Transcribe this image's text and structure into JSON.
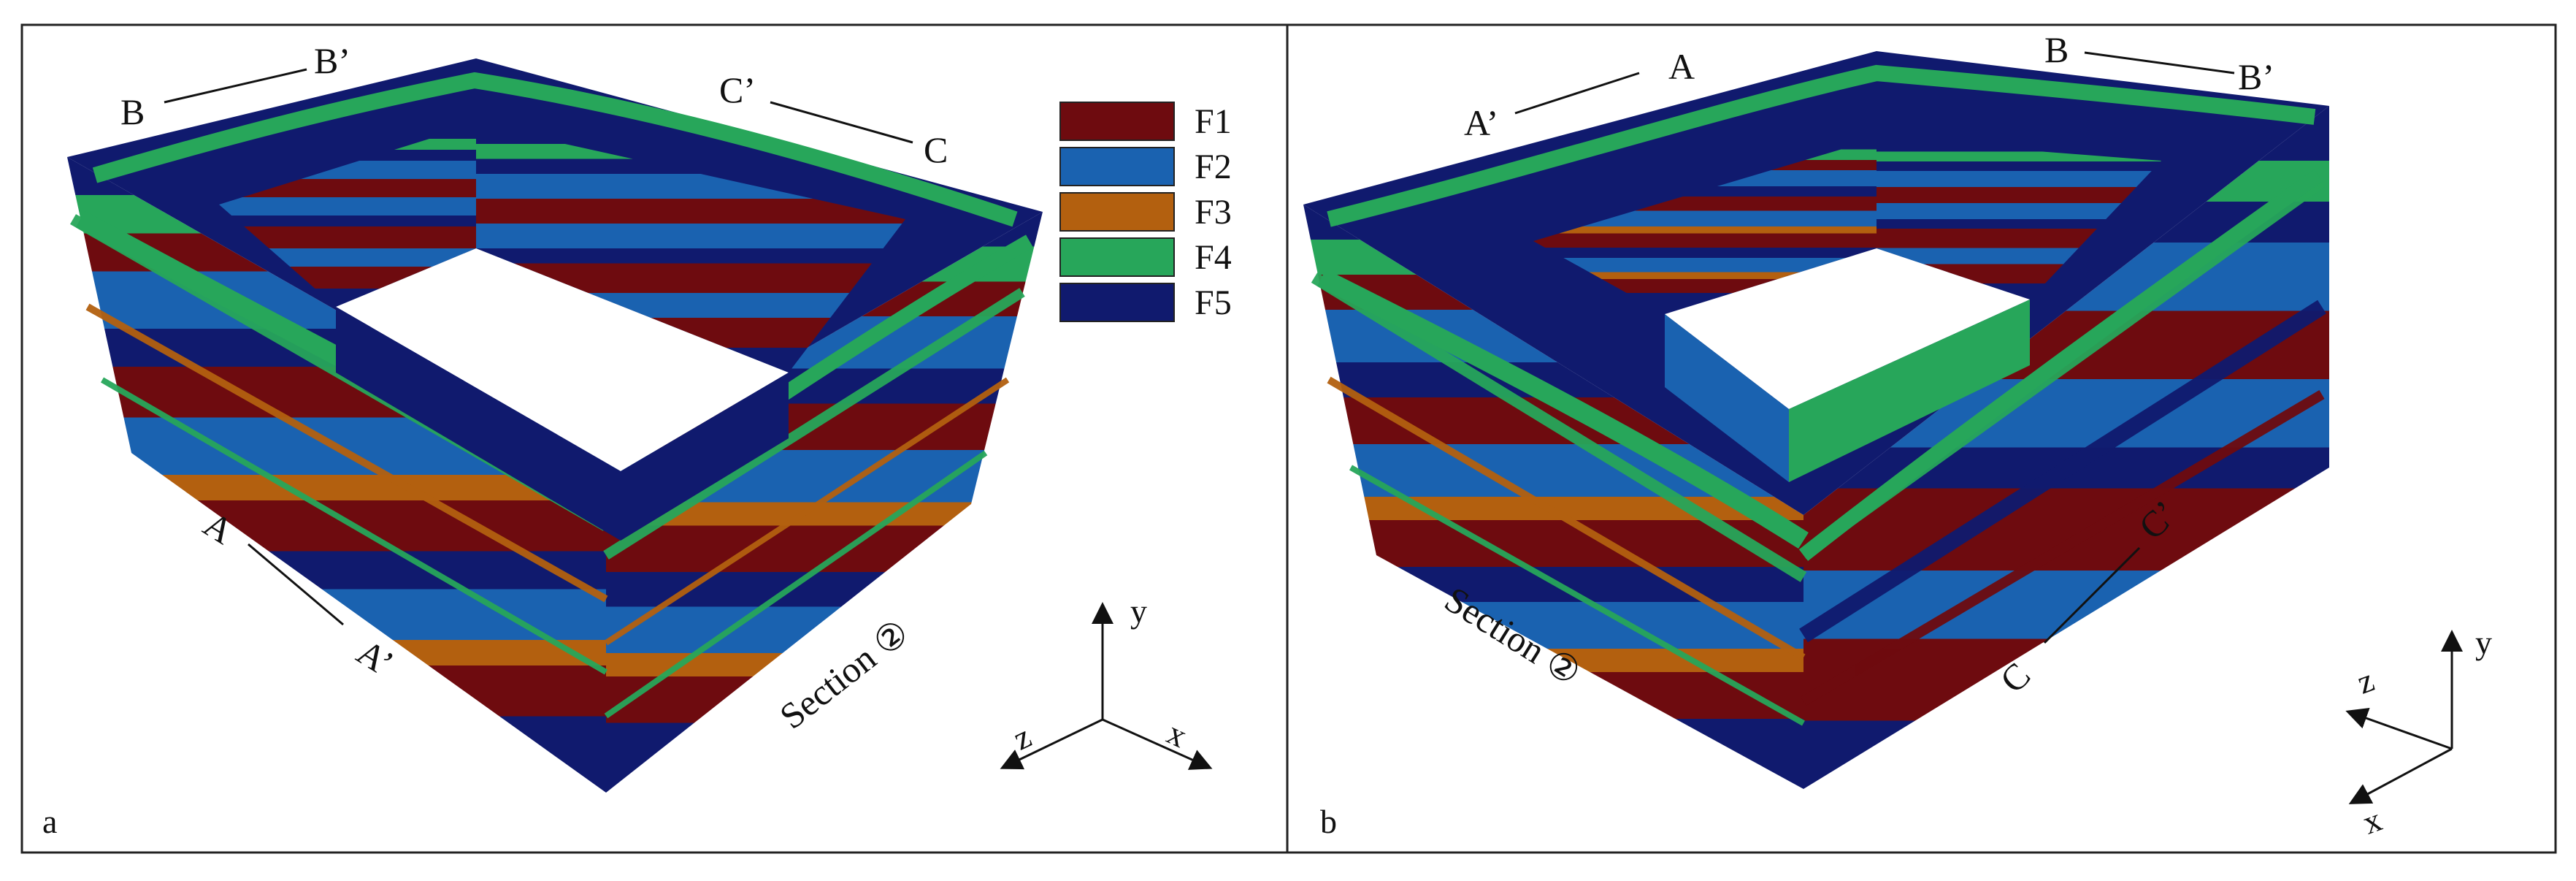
{
  "legend": {
    "items": [
      {
        "label": "F1",
        "color": "#6e0b0f"
      },
      {
        "label": "F2",
        "color": "#1a62b0"
      },
      {
        "label": "F3",
        "color": "#b3600f"
      },
      {
        "label": "F4",
        "color": "#27a65a"
      },
      {
        "label": "F5",
        "color": "#101a6e"
      }
    ]
  },
  "panel_a": {
    "letter": "a",
    "labels": {
      "B": "B",
      "B_prime": "B’",
      "C_prime": "C’",
      "C": "C",
      "A": "A",
      "A_prime": "A’",
      "section": "Section ②"
    },
    "axes": {
      "x": "x",
      "y": "y",
      "z": "z"
    }
  },
  "panel_b": {
    "letter": "b",
    "labels": {
      "A_prime": "A’",
      "A": "A",
      "B": "B",
      "B_prime": "B’",
      "C": "C",
      "C_prime": "C’",
      "section": "Section ②"
    },
    "axes": {
      "x": "x",
      "y": "y",
      "z": "z"
    }
  },
  "colors": {
    "frame": "#222222",
    "text": "#111111"
  }
}
